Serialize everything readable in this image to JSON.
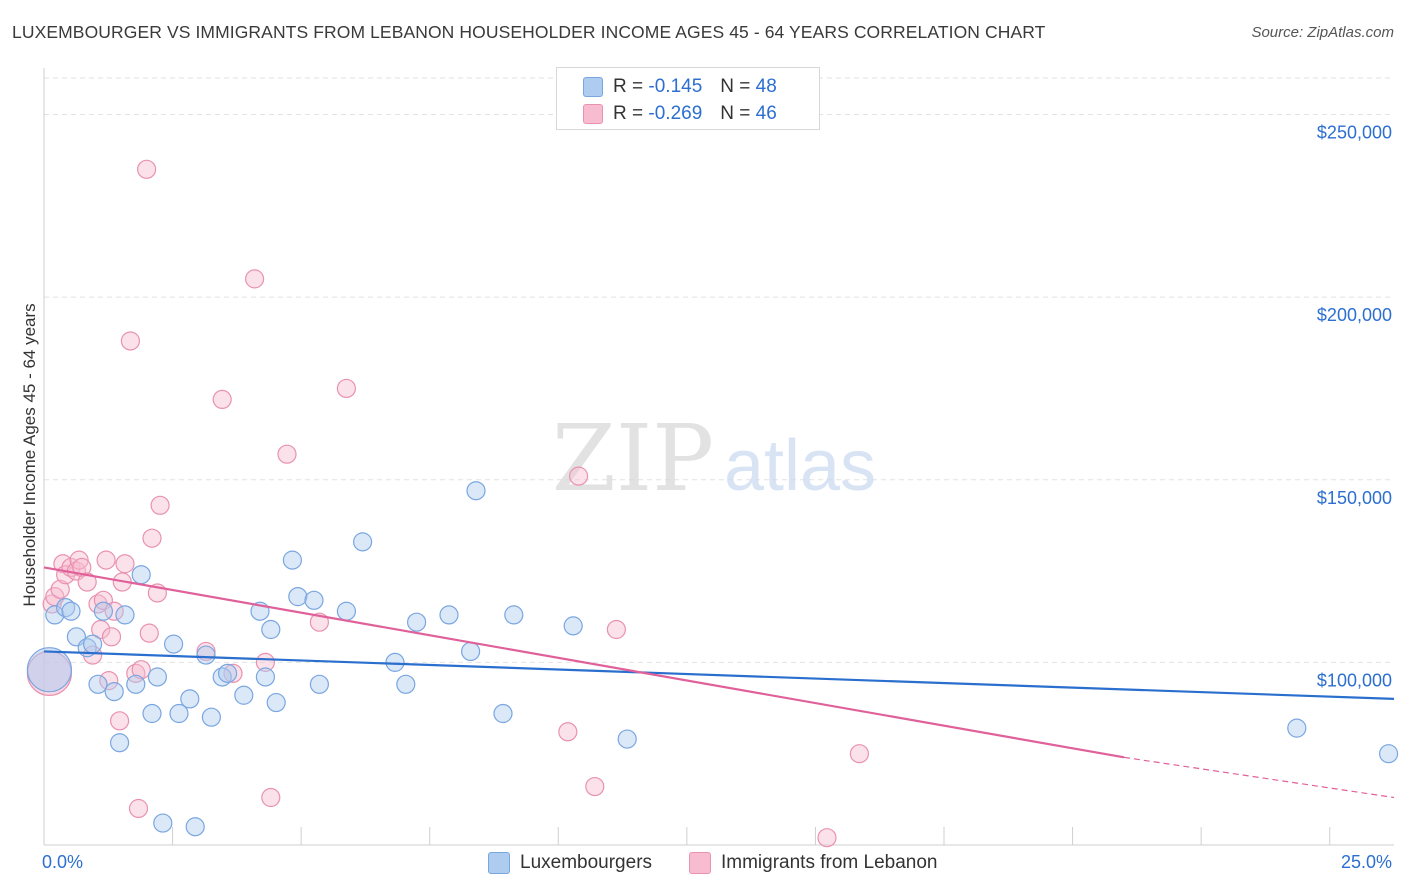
{
  "header": {
    "title": "LUXEMBOURGER VS IMMIGRANTS FROM LEBANON HOUSEHOLDER INCOME AGES 45 - 64 YEARS CORRELATION CHART",
    "source": "Source: ZipAtlas.com"
  },
  "watermark": {
    "part1": "ZIP",
    "part2": "atlas"
  },
  "legend_top": {
    "rows": [
      {
        "r_label": "R =",
        "r_value": "-0.145",
        "n_label": "N =",
        "n_value": "48"
      },
      {
        "r_label": "R =",
        "r_value": "-0.269",
        "n_label": "N =",
        "n_value": "46"
      }
    ]
  },
  "legend_bottom": {
    "series1": "Luxembourgers",
    "series2": "Immigrants from Lebanon"
  },
  "colors": {
    "series1_fill": "#aecbf0",
    "series1_stroke": "#7aa6e0",
    "series1_line": "#2a6fce",
    "series2_fill": "#f7bcd0",
    "series2_stroke": "#e992b0",
    "series2_line": "#e0609a",
    "tick_text": "#2c6fd1",
    "grid": "#e2e2e2"
  },
  "chart_data": {
    "type": "scatter",
    "title": "LUXEMBOURGER VS IMMIGRANTS FROM LEBANON HOUSEHOLDER INCOME AGES 45 - 64 YEARS CORRELATION CHART",
    "xlabel": "",
    "ylabel": "Householder Income Ages 45 - 64 years",
    "xlim": [
      0,
      25
    ],
    "ylim": [
      50000,
      260000
    ],
    "x_tick_labels": [
      "0.0%",
      "25.0%"
    ],
    "y_ticks": [
      100000,
      150000,
      200000,
      250000
    ],
    "y_tick_labels": [
      "$100,000",
      "$150,000",
      "$200,000",
      "$250,000"
    ],
    "grid": true,
    "legend_position": "top-center",
    "series": [
      {
        "name": "Luxembourgers",
        "r": -0.145,
        "n": 48,
        "trend": {
          "x": [
            0,
            25
          ],
          "y": [
            103000,
            90000
          ]
        },
        "points": [
          {
            "x": 0.1,
            "y": 98000,
            "big": true
          },
          {
            "x": 0.2,
            "y": 113000
          },
          {
            "x": 0.4,
            "y": 115000
          },
          {
            "x": 0.5,
            "y": 114000
          },
          {
            "x": 0.6,
            "y": 107000
          },
          {
            "x": 0.8,
            "y": 104000
          },
          {
            "x": 0.9,
            "y": 105000
          },
          {
            "x": 1.0,
            "y": 94000
          },
          {
            "x": 1.1,
            "y": 114000
          },
          {
            "x": 1.3,
            "y": 92000
          },
          {
            "x": 1.4,
            "y": 78000
          },
          {
            "x": 1.5,
            "y": 113000
          },
          {
            "x": 1.7,
            "y": 94000
          },
          {
            "x": 1.8,
            "y": 124000
          },
          {
            "x": 2.0,
            "y": 86000
          },
          {
            "x": 2.1,
            "y": 96000
          },
          {
            "x": 2.2,
            "y": 56000
          },
          {
            "x": 2.4,
            "y": 105000
          },
          {
            "x": 2.5,
            "y": 86000
          },
          {
            "x": 2.7,
            "y": 90000
          },
          {
            "x": 2.8,
            "y": 55000
          },
          {
            "x": 3.0,
            "y": 102000
          },
          {
            "x": 3.1,
            "y": 85000
          },
          {
            "x": 3.3,
            "y": 96000
          },
          {
            "x": 3.4,
            "y": 97000
          },
          {
            "x": 3.7,
            "y": 91000
          },
          {
            "x": 4.0,
            "y": 114000
          },
          {
            "x": 4.1,
            "y": 96000
          },
          {
            "x": 4.2,
            "y": 109000
          },
          {
            "x": 4.3,
            "y": 89000
          },
          {
            "x": 4.6,
            "y": 128000
          },
          {
            "x": 4.7,
            "y": 118000
          },
          {
            "x": 5.0,
            "y": 117000
          },
          {
            "x": 5.1,
            "y": 94000
          },
          {
            "x": 5.6,
            "y": 114000
          },
          {
            "x": 5.9,
            "y": 133000
          },
          {
            "x": 6.5,
            "y": 100000
          },
          {
            "x": 6.7,
            "y": 94000
          },
          {
            "x": 6.9,
            "y": 111000
          },
          {
            "x": 7.5,
            "y": 113000
          },
          {
            "x": 7.9,
            "y": 103000
          },
          {
            "x": 8.0,
            "y": 147000
          },
          {
            "x": 8.5,
            "y": 86000
          },
          {
            "x": 8.7,
            "y": 113000
          },
          {
            "x": 9.8,
            "y": 110000
          },
          {
            "x": 10.8,
            "y": 79000
          },
          {
            "x": 23.2,
            "y": 82000
          },
          {
            "x": 24.9,
            "y": 75000
          }
        ]
      },
      {
        "name": "Immigrants from Lebanon",
        "r": -0.269,
        "n": 46,
        "trend": {
          "x": [
            0,
            20,
            25
          ],
          "y": [
            126000,
            74000,
            63000
          ],
          "solid_until_x": 20
        },
        "points": [
          {
            "x": 0.1,
            "y": 97000,
            "big": true
          },
          {
            "x": 0.15,
            "y": 116000
          },
          {
            "x": 0.2,
            "y": 118000
          },
          {
            "x": 0.3,
            "y": 120000
          },
          {
            "x": 0.35,
            "y": 127000
          },
          {
            "x": 0.4,
            "y": 124000
          },
          {
            "x": 0.5,
            "y": 126000
          },
          {
            "x": 0.6,
            "y": 125000
          },
          {
            "x": 0.65,
            "y": 128000
          },
          {
            "x": 0.7,
            "y": 126000
          },
          {
            "x": 0.8,
            "y": 122000
          },
          {
            "x": 0.9,
            "y": 102000
          },
          {
            "x": 1.0,
            "y": 116000
          },
          {
            "x": 1.05,
            "y": 109000
          },
          {
            "x": 1.1,
            "y": 117000
          },
          {
            "x": 1.15,
            "y": 128000
          },
          {
            "x": 1.2,
            "y": 95000
          },
          {
            "x": 1.25,
            "y": 107000
          },
          {
            "x": 1.3,
            "y": 114000
          },
          {
            "x": 1.4,
            "y": 84000
          },
          {
            "x": 1.45,
            "y": 122000
          },
          {
            "x": 1.5,
            "y": 127000
          },
          {
            "x": 1.6,
            "y": 188000
          },
          {
            "x": 1.7,
            "y": 97000
          },
          {
            "x": 1.75,
            "y": 60000
          },
          {
            "x": 1.8,
            "y": 98000
          },
          {
            "x": 1.9,
            "y": 235000
          },
          {
            "x": 1.95,
            "y": 108000
          },
          {
            "x": 2.0,
            "y": 134000
          },
          {
            "x": 2.1,
            "y": 119000
          },
          {
            "x": 2.15,
            "y": 143000
          },
          {
            "x": 3.0,
            "y": 103000
          },
          {
            "x": 3.3,
            "y": 172000
          },
          {
            "x": 3.5,
            "y": 97000
          },
          {
            "x": 3.9,
            "y": 205000
          },
          {
            "x": 4.1,
            "y": 100000
          },
          {
            "x": 4.2,
            "y": 63000
          },
          {
            "x": 4.5,
            "y": 157000
          },
          {
            "x": 5.1,
            "y": 111000
          },
          {
            "x": 5.6,
            "y": 175000
          },
          {
            "x": 9.7,
            "y": 81000
          },
          {
            "x": 9.9,
            "y": 151000
          },
          {
            "x": 10.2,
            "y": 66000
          },
          {
            "x": 10.6,
            "y": 109000
          },
          {
            "x": 14.5,
            "y": 52000
          },
          {
            "x": 15.1,
            "y": 75000
          }
        ]
      }
    ]
  }
}
